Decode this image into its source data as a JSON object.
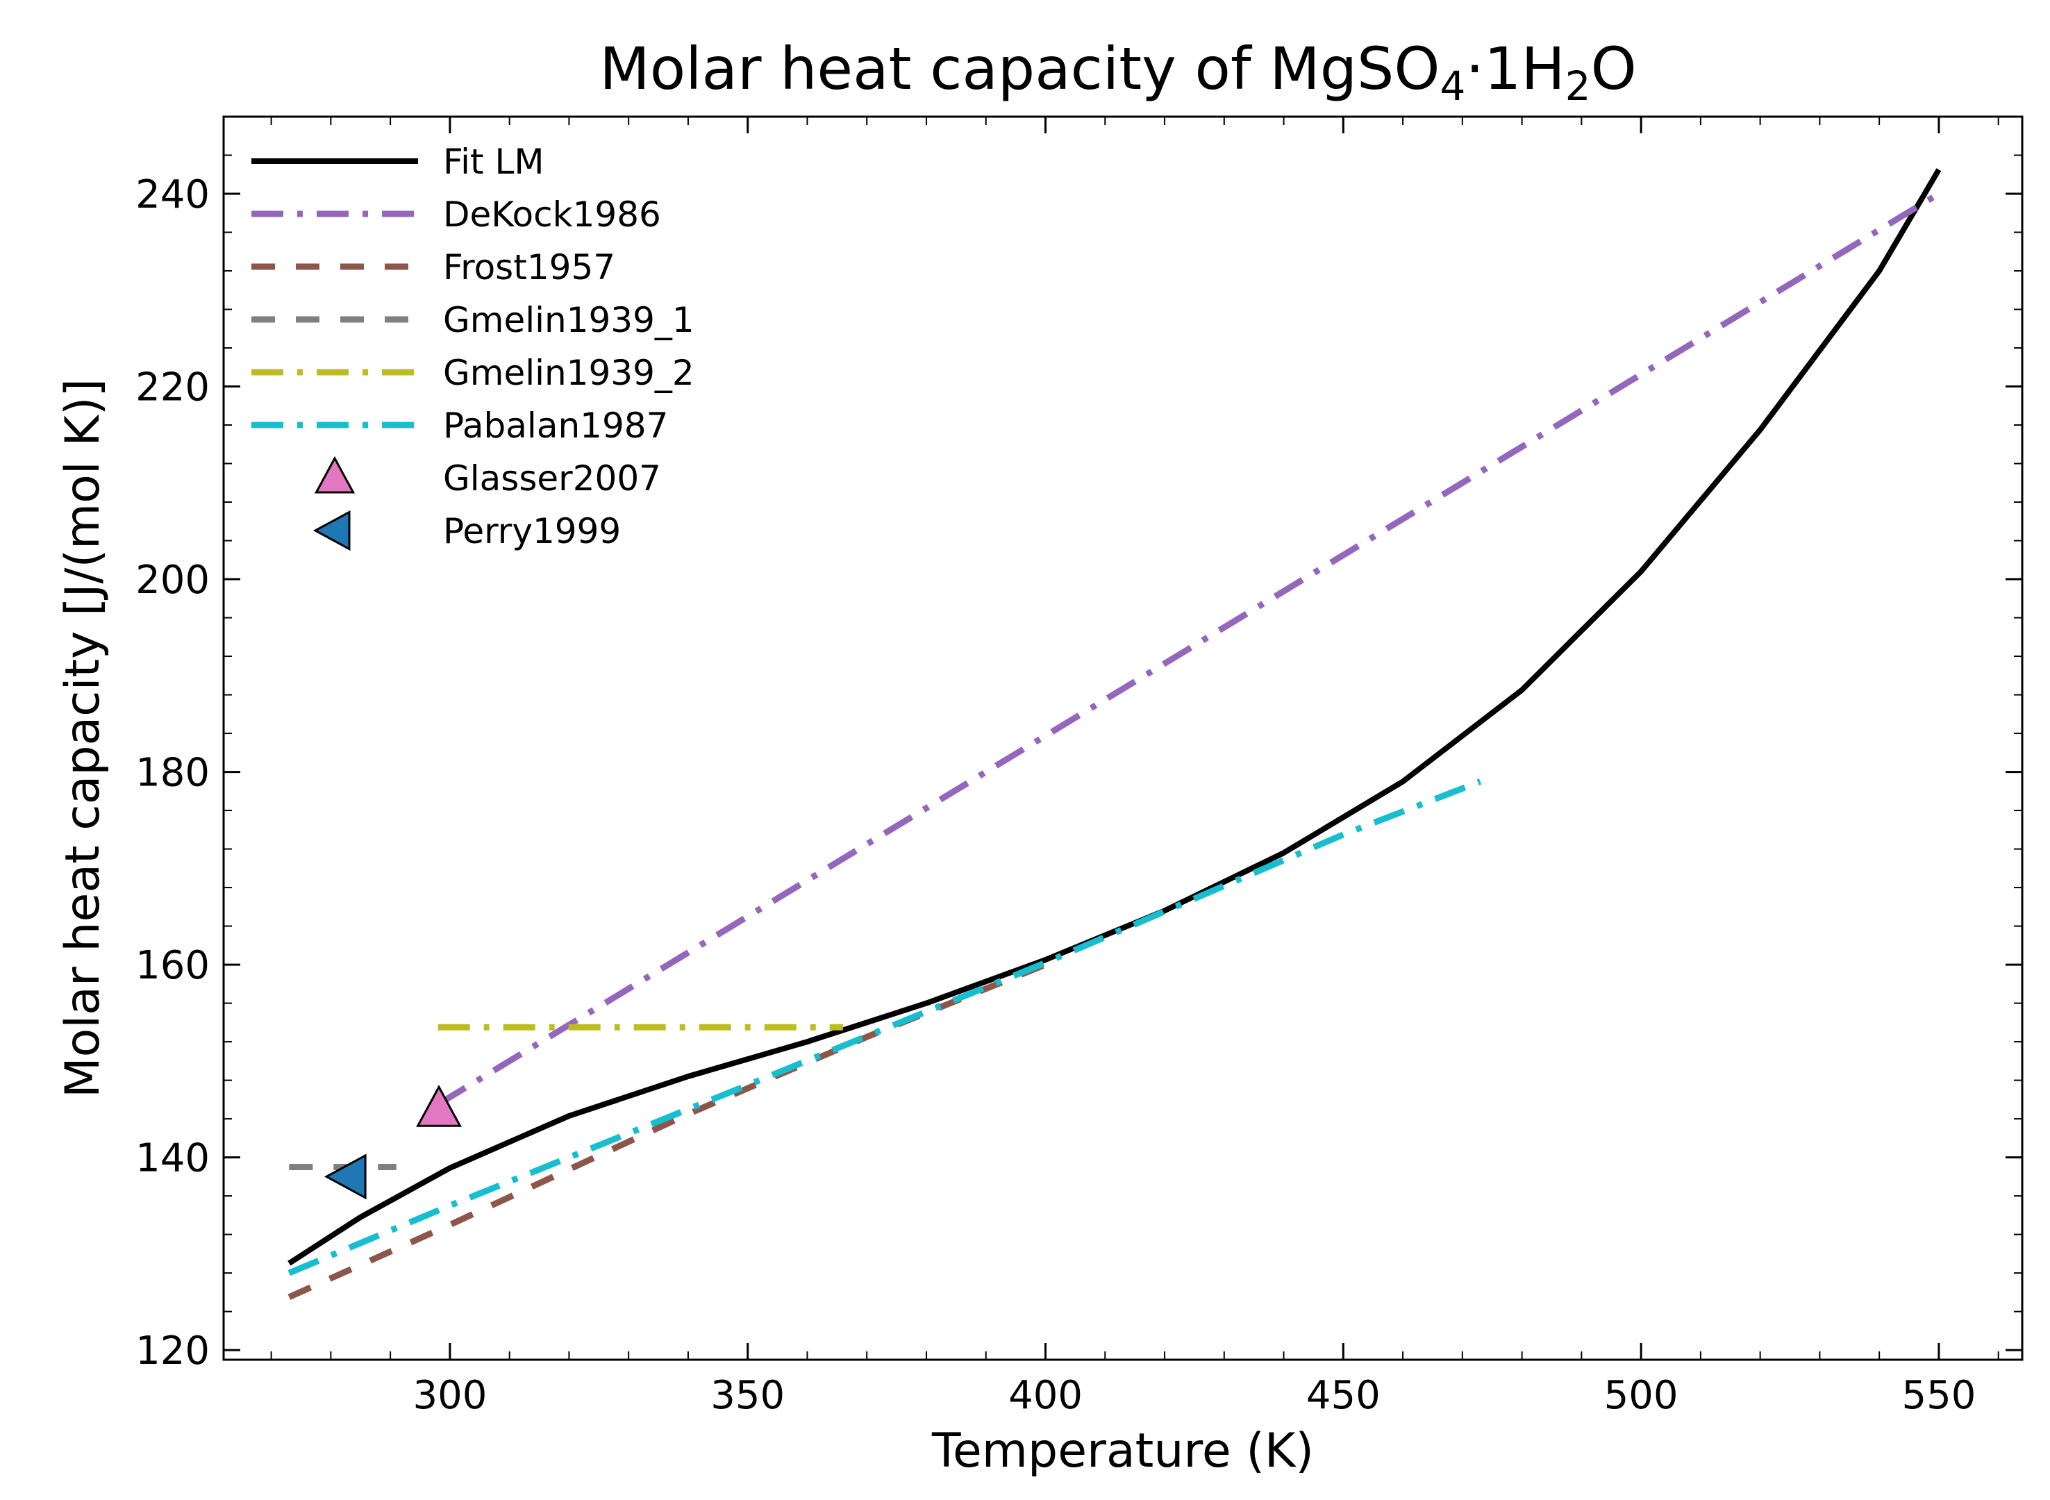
{
  "chart_data": {
    "type": "line",
    "title_main": "Molar heat capacity of MgSO",
    "title_sub1": "4",
    "title_mid": "·1H",
    "title_sub2": "2",
    "title_end": "O",
    "xlabel": "Temperature (K)",
    "ylabel": "Molar heat capacity [J/(mol K)]",
    "xlim": [
      262,
      564
    ],
    "ylim": [
      119,
      248
    ],
    "xticks": [
      300,
      350,
      400,
      450,
      500,
      550
    ],
    "yticks": [
      120,
      140,
      160,
      180,
      200,
      220,
      240
    ],
    "x_minor_step": 10,
    "y_minor_step": 4,
    "legend_position": "upper left",
    "series": [
      {
        "name": "Fit LM",
        "color": "#000000",
        "style": "solid",
        "x": [
          273,
          285,
          300,
          320,
          340,
          360,
          380,
          400,
          420,
          440,
          460,
          480,
          500,
          520,
          540,
          550
        ],
        "y": [
          129,
          133.8,
          138.9,
          144.3,
          148.4,
          152,
          156,
          160.5,
          165.6,
          171.6,
          179,
          188.5,
          200.8,
          215.5,
          232,
          242.5
        ]
      },
      {
        "name": "DeKock1986",
        "color": "#9467bd",
        "style": "dashdot",
        "x": [
          298,
          550
        ],
        "y": [
          145.5,
          240
        ]
      },
      {
        "name": "Frost1957",
        "color": "#8c564b",
        "style": "dashed",
        "x": [
          273,
          300,
          340,
          370,
          400
        ],
        "y": [
          125.5,
          133,
          144.5,
          152.5,
          160
        ]
      },
      {
        "name": "Gmelin1939_1",
        "color": "#7f7f7f",
        "style": "dashed",
        "x": [
          273,
          291
        ],
        "y": [
          139,
          139
        ]
      },
      {
        "name": "Gmelin1939_2",
        "color": "#bcbd22",
        "style": "dashdot",
        "x": [
          298,
          366
        ],
        "y": [
          153.5,
          153.5
        ]
      },
      {
        "name": "Pabalan1987",
        "color": "#17becf",
        "style": "dashdot",
        "x": [
          273,
          300,
          350,
          400,
          450,
          473
        ],
        "y": [
          128,
          135,
          147.5,
          160.2,
          173.5,
          179
        ]
      },
      {
        "name": "Glasser2007",
        "color": "#e377c2",
        "marker": "triangle-up",
        "x": [
          298.15
        ],
        "y": [
          145
        ]
      },
      {
        "name": "Perry1999",
        "color": "#1f77b4",
        "marker": "triangle-left",
        "x": [
          283
        ],
        "y": [
          138
        ]
      }
    ]
  }
}
